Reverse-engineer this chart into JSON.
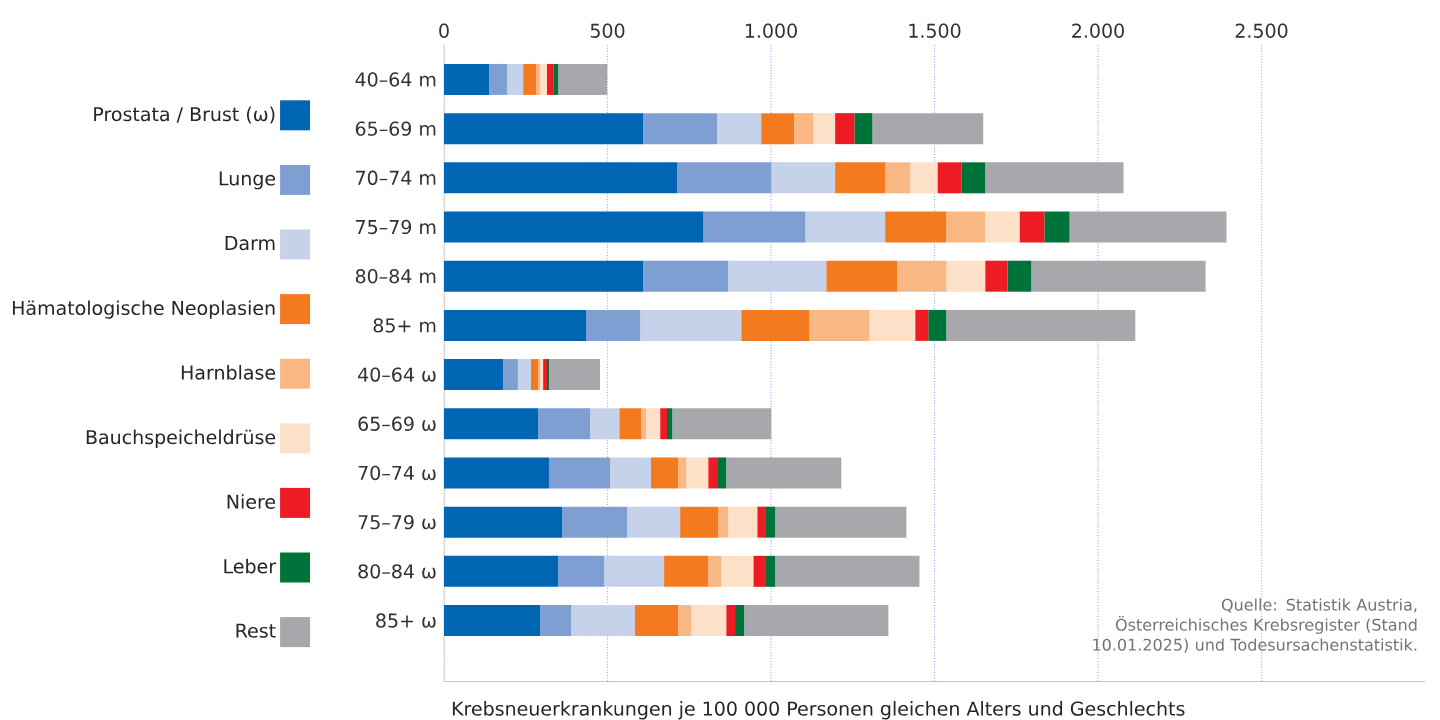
{
  "chart_data": {
    "type": "bar",
    "orientation": "horizontal",
    "stacked": true,
    "xlabel": "Krebsneuerkrankungen je 100 000 Personen gleichen Alters und Geschlechts",
    "categories": [
      "40–64 m",
      "65–69 m",
      "70–74 m",
      "75–79 m",
      "80–84 m",
      "85+ m",
      "40–64 ω",
      "65–69 ω",
      "70–74 ω",
      "75–79 ω",
      "80–84 ω",
      "85+ ω"
    ],
    "series": [
      {
        "name": "Prostata / Brust (ω)",
        "color": "#0066b3",
        "values": [
          138,
          609,
          713,
          793,
          609,
          435,
          181,
          288,
          321,
          361,
          349,
          294
        ]
      },
      {
        "name": "Lunge",
        "color": "#7f9fd3",
        "values": [
          55,
          226,
          288,
          312,
          260,
          165,
          45,
          159,
          187,
          199,
          141,
          95
        ]
      },
      {
        "name": "Darm",
        "color": "#c6d2e9",
        "values": [
          49,
          135,
          195,
          244,
          300,
          309,
          40,
          89,
          125,
          162,
          183,
          195
        ]
      },
      {
        "name": "Hämatologische Neoplasien",
        "color": "#f47a20",
        "values": [
          40,
          101,
          153,
          187,
          217,
          208,
          22,
          67,
          83,
          116,
          135,
          132
        ]
      },
      {
        "name": "Harnblase",
        "color": "#f9b784",
        "values": [
          12,
          58,
          77,
          119,
          150,
          184,
          6,
          15,
          25,
          31,
          40,
          40
        ]
      },
      {
        "name": "Bauchspeicheldrüse",
        "color": "#fde0c8",
        "values": [
          21,
          67,
          83,
          105,
          119,
          140,
          9,
          43,
          67,
          89,
          98,
          107
        ]
      },
      {
        "name": "Niere",
        "color": "#ed1c24",
        "values": [
          21,
          59,
          73,
          76,
          68,
          40,
          12,
          21,
          30,
          24,
          36,
          27
        ]
      },
      {
        "name": "Leber",
        "color": "#00733a",
        "values": [
          13,
          55,
          73,
          77,
          73,
          55,
          6,
          16,
          25,
          31,
          31,
          28
        ]
      },
      {
        "name": "Rest",
        "color": "#a7a8ab",
        "values": [
          150,
          339,
          423,
          480,
          533,
          578,
          156,
          303,
          352,
          401,
          441,
          441
        ]
      }
    ],
    "xlim": [
      0,
      3000
    ],
    "xticks": [
      0,
      500,
      {
        "value": 1000,
        "label": "1.000"
      },
      {
        "value": 1500,
        "label": "1.500"
      },
      {
        "value": 2000,
        "label": "2.000"
      },
      {
        "value": 2500,
        "label": "2.500"
      }
    ],
    "grid": "x",
    "legend": "left",
    "annotations": [
      "Quelle: Statistik Austria, Österreichisches Krebsregister (Stand 10.01.2025) und Todesursachenstatistik."
    ]
  }
}
